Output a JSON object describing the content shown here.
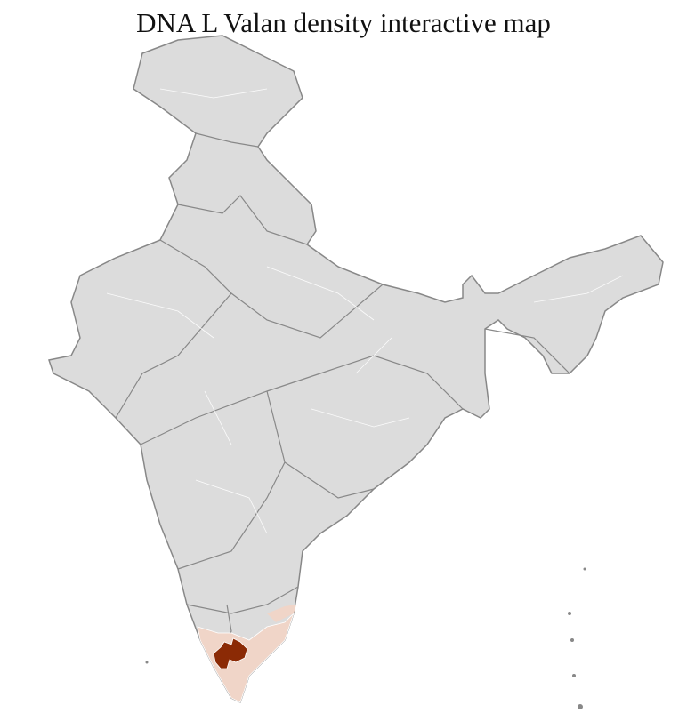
{
  "title": "DNA L Valan density interactive map",
  "map": {
    "region": "India districts",
    "colors": {
      "no_data": "#dcdcdc",
      "low_density": "#f0d5c8",
      "high_density": "#8b2a05",
      "state_border": "#888888",
      "district_border": "#ffffff"
    },
    "highlighted_area": "southern India (Kerala / Tamil Nadu border districts)"
  }
}
